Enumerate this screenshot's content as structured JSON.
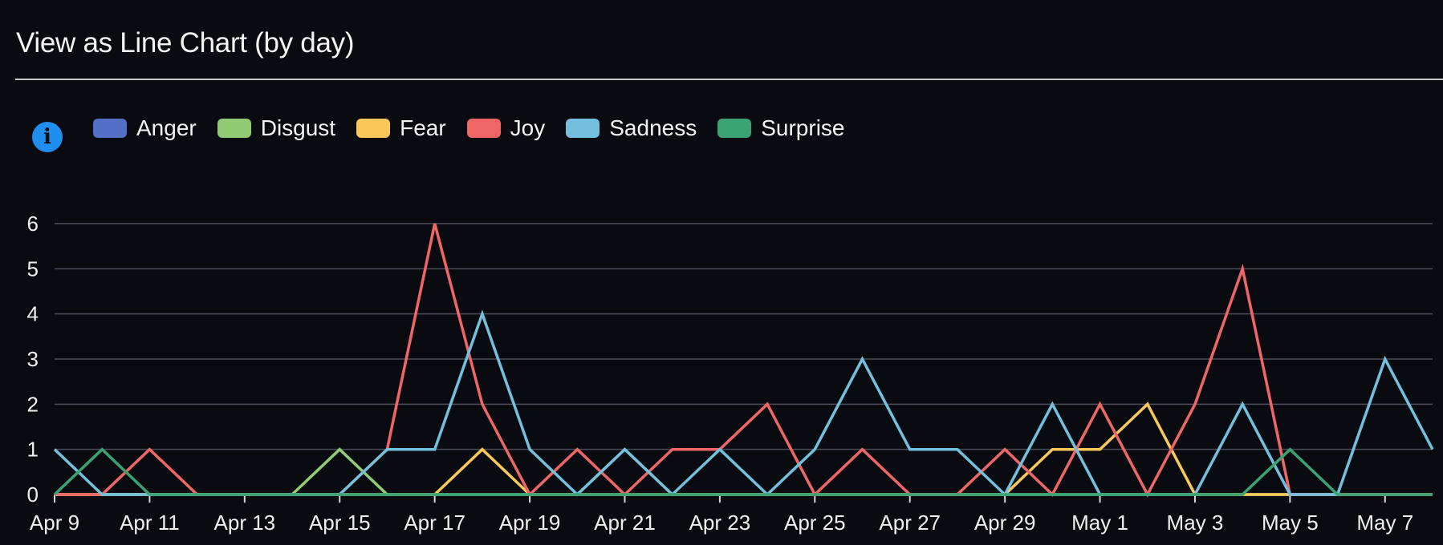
{
  "panel": {
    "title": "View as Line Chart (by day)",
    "info_icon": "info-icon"
  },
  "chart_data": {
    "type": "line",
    "title": "View as Line Chart (by day)",
    "xlabel": "",
    "ylabel": "",
    "ylim": [
      0,
      6
    ],
    "yticks": [
      0,
      1,
      2,
      3,
      4,
      5,
      6
    ],
    "grid": true,
    "legend_position": "top-left",
    "categories": [
      "Apr 9",
      "Apr 10",
      "Apr 11",
      "Apr 12",
      "Apr 13",
      "Apr 14",
      "Apr 15",
      "Apr 16",
      "Apr 17",
      "Apr 18",
      "Apr 19",
      "Apr 20",
      "Apr 21",
      "Apr 22",
      "Apr 23",
      "Apr 24",
      "Apr 25",
      "Apr 26",
      "Apr 27",
      "Apr 28",
      "Apr 29",
      "Apr 30",
      "May 1",
      "May 2",
      "May 3",
      "May 4",
      "May 5",
      "May 6",
      "May 7",
      "May 8"
    ],
    "xtick_labels": [
      "Apr 9",
      "Apr 11",
      "Apr 13",
      "Apr 15",
      "Apr 17",
      "Apr 19",
      "Apr 21",
      "Apr 23",
      "Apr 25",
      "Apr 27",
      "Apr 29",
      "May 1",
      "May 3",
      "May 5",
      "May 7"
    ],
    "series": [
      {
        "name": "Anger",
        "color": "#5470c6",
        "values": [
          0,
          0,
          0,
          0,
          0,
          0,
          0,
          0,
          0,
          0,
          0,
          0,
          0,
          0,
          0,
          0,
          0,
          0,
          0,
          0,
          0,
          0,
          0,
          0,
          0,
          0,
          0,
          0,
          0,
          0
        ]
      },
      {
        "name": "Disgust",
        "color": "#91cc75",
        "values": [
          0,
          0,
          0,
          0,
          0,
          0,
          1,
          0,
          0,
          0,
          0,
          0,
          1,
          0,
          0,
          0,
          0,
          0,
          0,
          0,
          0,
          0,
          0,
          0,
          0,
          0,
          0,
          0,
          0,
          0
        ]
      },
      {
        "name": "Fear",
        "color": "#fac858",
        "values": [
          0,
          0,
          0,
          0,
          0,
          0,
          0,
          0,
          0,
          1,
          0,
          0,
          0,
          0,
          0,
          0,
          0,
          0,
          0,
          0,
          0,
          1,
          1,
          2,
          0,
          0,
          0,
          0,
          0,
          0
        ]
      },
      {
        "name": "Joy",
        "color": "#ee6666",
        "values": [
          0,
          0,
          1,
          0,
          0,
          0,
          0,
          1,
          6,
          2,
          0,
          1,
          0,
          1,
          1,
          2,
          0,
          1,
          0,
          0,
          1,
          0,
          2,
          0,
          2,
          5,
          0,
          0,
          0,
          0
        ]
      },
      {
        "name": "Sadness",
        "color": "#73c0de",
        "values": [
          1,
          0,
          0,
          0,
          0,
          0,
          0,
          1,
          1,
          4,
          1,
          0,
          1,
          0,
          1,
          0,
          1,
          3,
          1,
          1,
          0,
          2,
          0,
          0,
          0,
          2,
          0,
          0,
          3,
          1
        ]
      },
      {
        "name": "Surprise",
        "color": "#3ba272",
        "values": [
          0,
          1,
          0,
          0,
          0,
          0,
          0,
          0,
          0,
          0,
          0,
          0,
          0,
          0,
          0,
          0,
          0,
          0,
          0,
          0,
          0,
          0,
          0,
          0,
          0,
          0,
          1,
          0,
          0,
          0
        ]
      }
    ]
  }
}
